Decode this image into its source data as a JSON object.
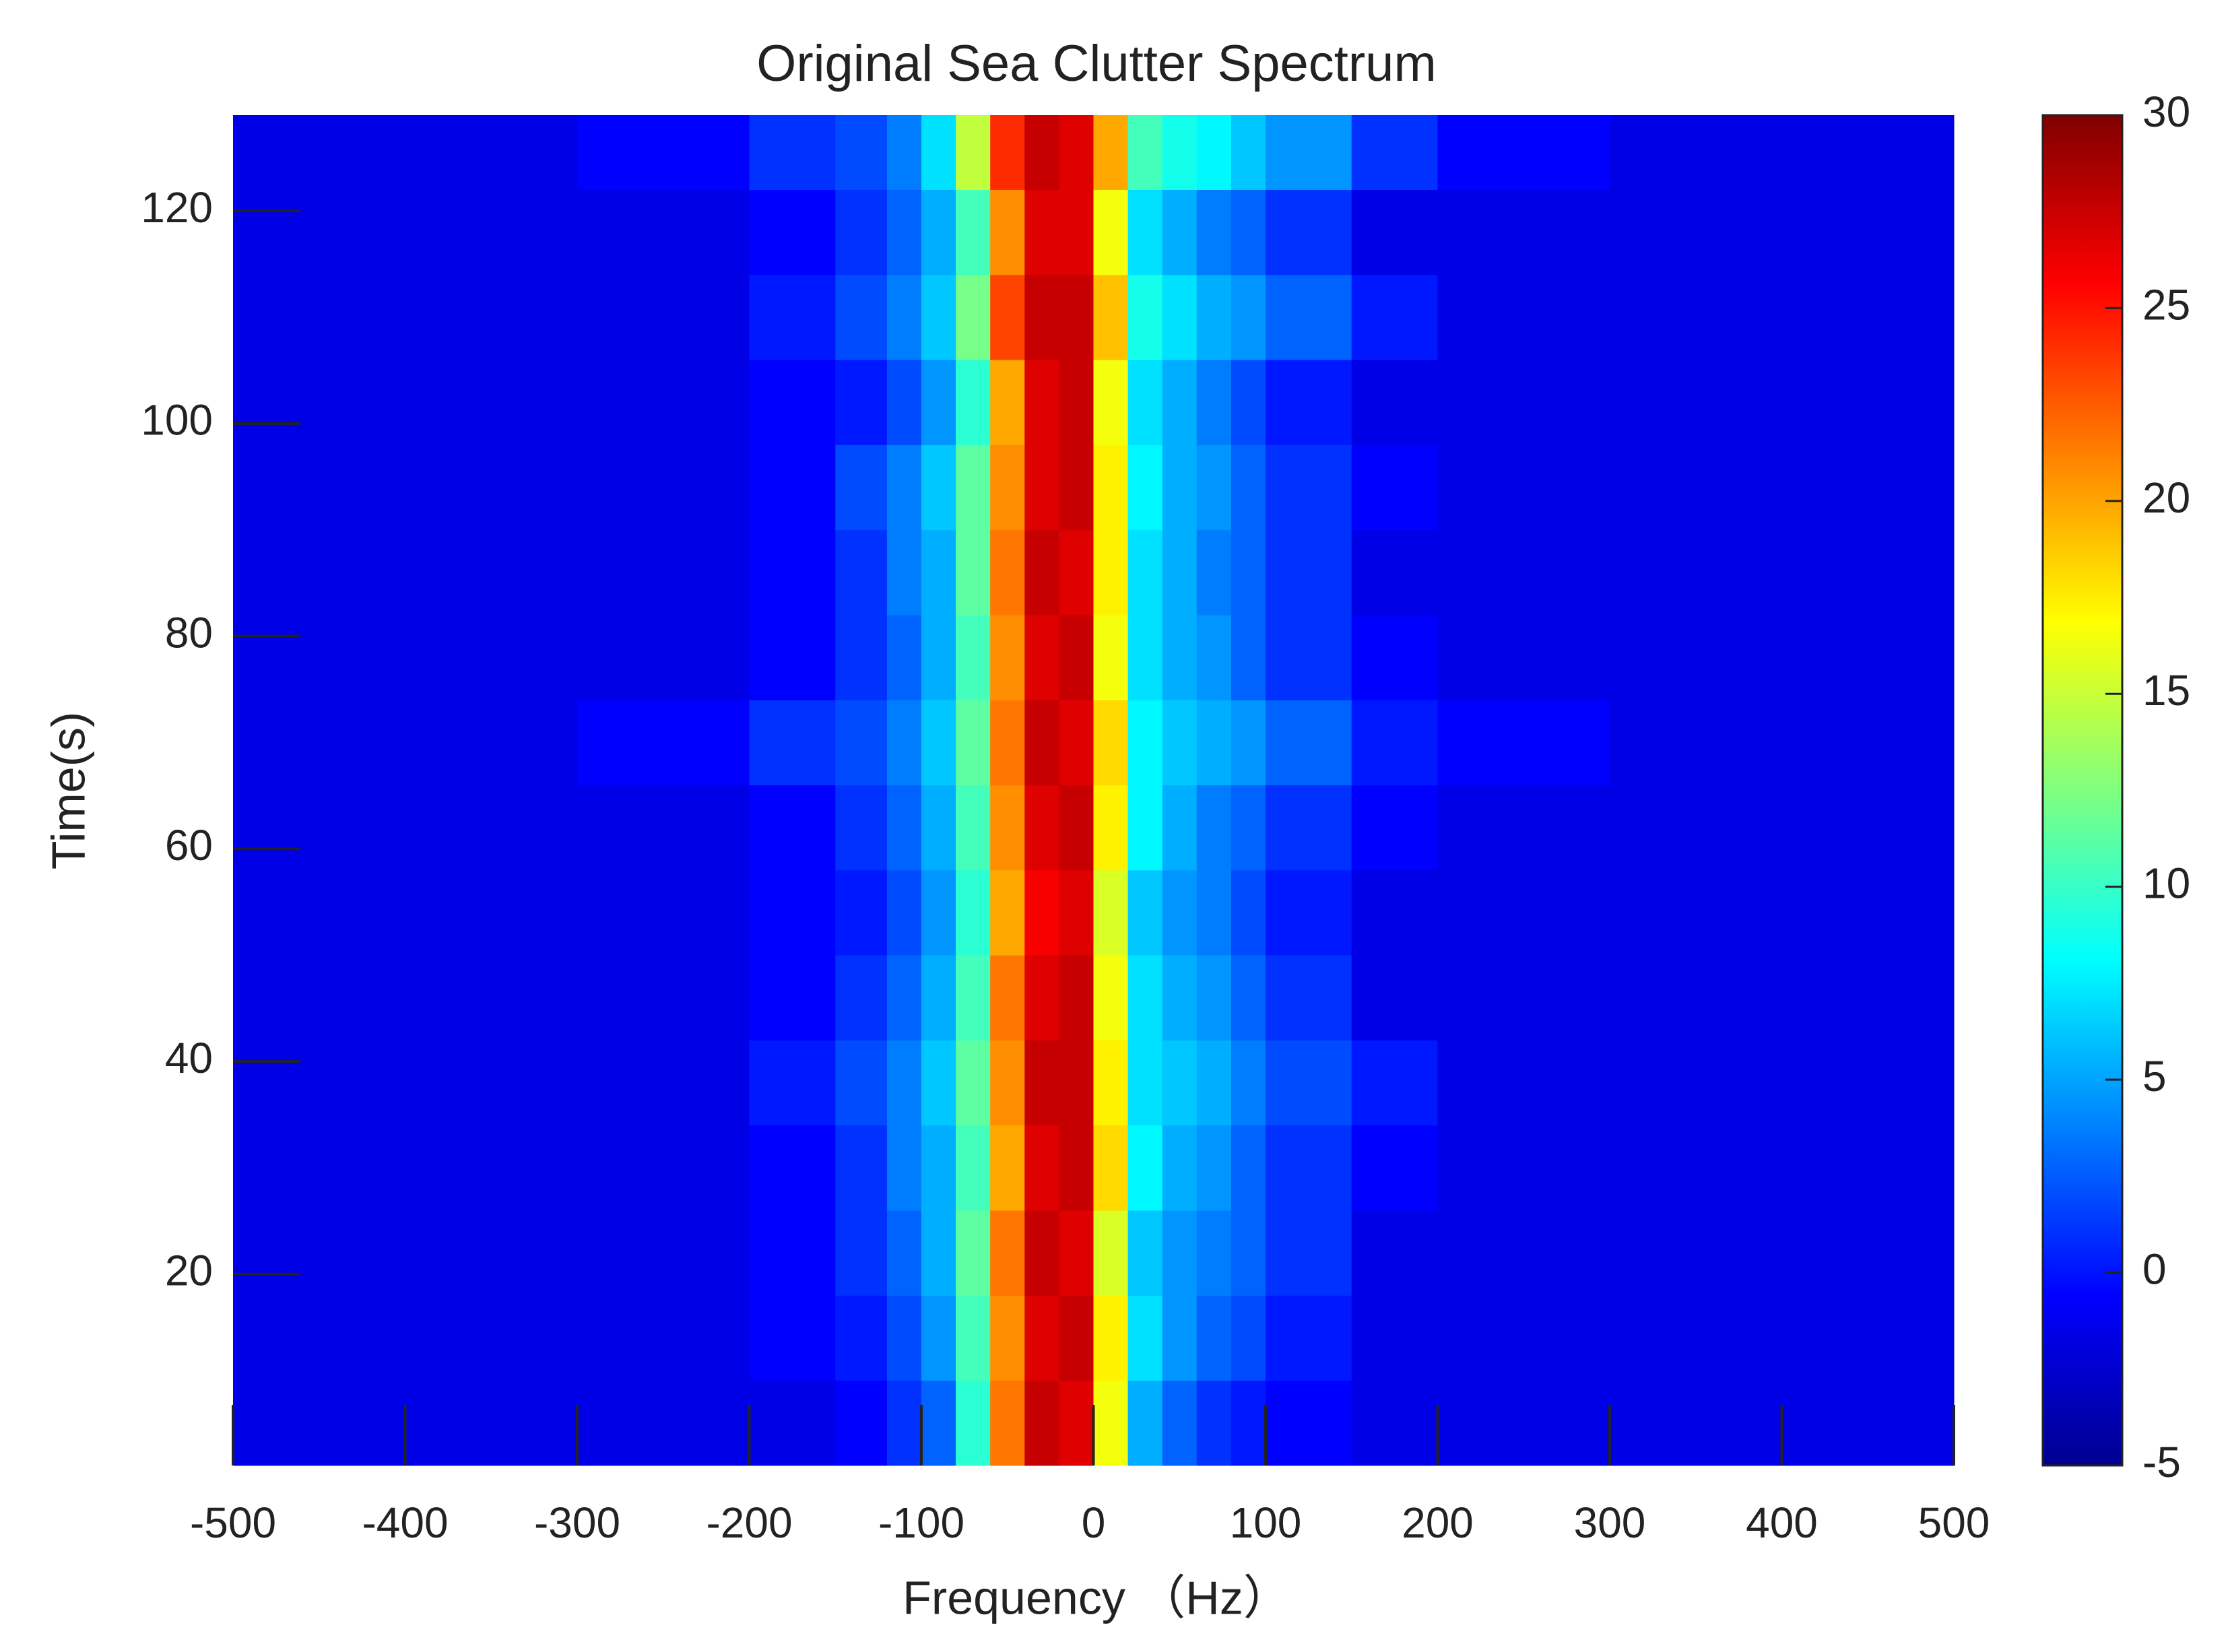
{
  "chart_data": {
    "type": "heatmap",
    "title": "Original Sea Clutter Spectrum",
    "x_label": "Frequency （Hz）",
    "y_label": "Time(s)",
    "xlim": [
      -500,
      500
    ],
    "ylim": [
      2,
      129
    ],
    "xticks": [
      -500,
      -400,
      -300,
      -200,
      -100,
      0,
      100,
      200,
      300,
      400,
      500
    ],
    "yticks": [
      20,
      40,
      60,
      80,
      100,
      120
    ],
    "x_edges": [
      -500,
      -300,
      -200,
      -150,
      -120,
      -100,
      -80,
      -60,
      -40,
      -20,
      0,
      20,
      40,
      60,
      80,
      100,
      150,
      200,
      300,
      500
    ],
    "y_edges": [
      2,
      10,
      18,
      26,
      34,
      42,
      50,
      58,
      66,
      74,
      82,
      90,
      98,
      106,
      114,
      122,
      129
    ],
    "colormap": "jet",
    "clim": [
      -5,
      30
    ],
    "cticks": [
      -5,
      0,
      5,
      10,
      15,
      20,
      25,
      30
    ],
    "z": [
      [
        -5,
        -5,
        -5,
        -4,
        -2,
        0,
        8,
        22,
        29,
        28,
        16,
        3,
        0,
        -2,
        -3,
        -4,
        -5,
        -5,
        -5
      ],
      [
        -5,
        -5,
        -4,
        -3,
        -1,
        2,
        9,
        21,
        28,
        29,
        17,
        5,
        2,
        0,
        -1,
        -3,
        -5,
        -5,
        -5
      ],
      [
        -5,
        -5,
        -4,
        -2,
        0,
        3,
        10,
        22,
        29,
        28,
        15,
        4,
        2,
        1,
        0,
        -2,
        -5,
        -5,
        -5
      ],
      [
        -5,
        -5,
        -4,
        -2,
        1,
        3,
        9,
        20,
        28,
        29,
        18,
        6,
        3,
        2,
        0,
        -2,
        -4,
        -5,
        -5
      ],
      [
        -5,
        -5,
        -3,
        -1,
        1,
        4,
        10,
        21,
        29,
        29,
        17,
        5,
        4,
        3,
        1,
        -1,
        -3,
        -5,
        -5
      ],
      [
        -5,
        -5,
        -4,
        -2,
        0,
        3,
        9,
        22,
        28,
        29,
        16,
        5,
        3,
        2,
        0,
        -2,
        -5,
        -5,
        -5
      ],
      [
        -5,
        -5,
        -4,
        -3,
        -1,
        2,
        8,
        20,
        27,
        28,
        15,
        4,
        2,
        1,
        -1,
        -3,
        -5,
        -5,
        -5
      ],
      [
        -5,
        -5,
        -4,
        -2,
        0,
        3,
        9,
        21,
        28,
        29,
        17,
        6,
        3,
        1,
        0,
        -2,
        -4,
        -5,
        -5
      ],
      [
        -5,
        -4,
        -2,
        -1,
        1,
        4,
        10,
        22,
        29,
        28,
        18,
        6,
        4,
        3,
        2,
        0,
        -3,
        -4,
        -5
      ],
      [
        -5,
        -5,
        -4,
        -2,
        0,
        3,
        9,
        21,
        28,
        29,
        16,
        5,
        3,
        2,
        0,
        -2,
        -4,
        -5,
        -5
      ],
      [
        -5,
        -5,
        -4,
        -2,
        1,
        3,
        10,
        22,
        29,
        28,
        17,
        5,
        3,
        1,
        0,
        -2,
        -5,
        -5,
        -5
      ],
      [
        -5,
        -5,
        -4,
        -1,
        1,
        4,
        10,
        21,
        28,
        29,
        17,
        6,
        3,
        2,
        0,
        -2,
        -4,
        -5,
        -5
      ],
      [
        -5,
        -5,
        -4,
        -3,
        -1,
        2,
        8,
        20,
        28,
        29,
        16,
        5,
        3,
        1,
        -1,
        -3,
        -5,
        -5,
        -5
      ],
      [
        -5,
        -5,
        -3,
        -1,
        1,
        4,
        11,
        24,
        29,
        29,
        19,
        7,
        5,
        3,
        2,
        0,
        -3,
        -5,
        -5
      ],
      [
        -5,
        -5,
        -4,
        -2,
        0,
        3,
        9,
        21,
        28,
        28,
        16,
        5,
        3,
        1,
        0,
        -2,
        -5,
        -5,
        -5
      ],
      [
        -5,
        -4,
        -2,
        -1,
        1,
        5,
        14,
        25,
        29,
        28,
        20,
        9,
        7,
        6,
        4,
        2,
        -2,
        -4,
        -5
      ]
    ]
  }
}
